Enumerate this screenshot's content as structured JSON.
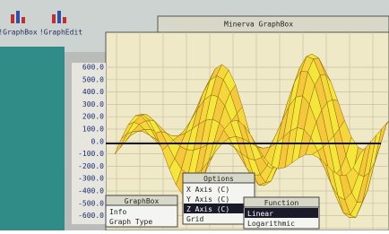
{
  "desktop": {
    "icons": [
      {
        "label": "!GraphBox"
      },
      {
        "label": "!GraphEdit"
      }
    ]
  },
  "window": {
    "title": "Minerva GraphBox",
    "axis_labels": [
      "600.0",
      "500.0",
      "400.0",
      "300.0",
      "200.0",
      "100.0",
      "0.0",
      "-100.0",
      "-200.0",
      "-300.0",
      "-400.0",
      "-500.0",
      "-600.0"
    ]
  },
  "menus": [
    {
      "title": "GraphBox",
      "items": [
        "Info",
        "Graph Type"
      ]
    },
    {
      "title": "Options",
      "items": [
        "X Axis (C)",
        "Y Axis (C)",
        "Z Axis (C)",
        "Grid"
      ],
      "selected": 2
    },
    {
      "title": "Function",
      "items": [
        "Linear",
        "Logarithmic"
      ],
      "selected": 0
    }
  ]
}
